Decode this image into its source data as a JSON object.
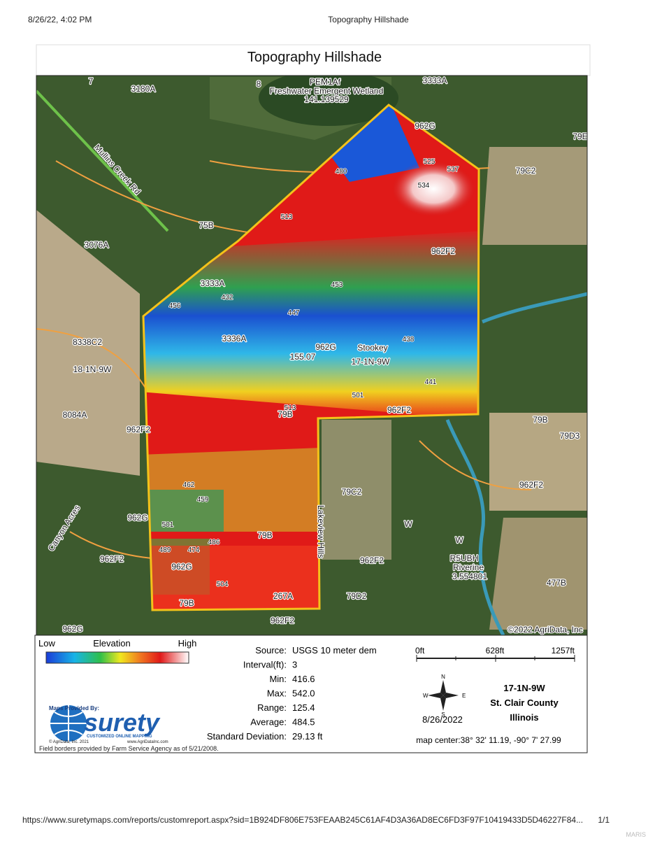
{
  "header": {
    "timestamp": "8/26/22, 4:02 PM",
    "page_title": "Topography Hillshade"
  },
  "report_title": "Topography Hillshade",
  "map_labels": [
    "7",
    "8",
    "3180A",
    "PEM1Af",
    "Freshwater Emergent Wetland",
    "141.139529",
    "3333A",
    "962G",
    "79E",
    "79C2",
    "Mullins Creek Rd",
    "75B",
    "3076A",
    "962F2",
    "3333A",
    "8338C2",
    "18-1N-9W",
    "3336A",
    "962G",
    "Stookey",
    "17-1N-9W",
    "155.07",
    "79B",
    "8084A",
    "962F2",
    "962F2",
    "79B",
    "79D3",
    "962F2",
    "79C2",
    "Lakeview Hills",
    "962G",
    "Canyon Acres",
    "962F2",
    "79B",
    "962F2",
    "R5UBH",
    "Riverine",
    "3.554801",
    "477B",
    "962G",
    "267A",
    "79D2",
    "79B",
    "962F2",
    "962G",
    "W",
    "W",
    "©2022 AgriData, Inc"
  ],
  "contour_labels": [
    "537",
    "534",
    "525",
    "513",
    "453",
    "438",
    "441",
    "501",
    "513",
    "504",
    "501",
    "489",
    "474",
    "486",
    "459",
    "462",
    "456",
    "480",
    "447",
    "432"
  ],
  "legend": {
    "low": "Low",
    "title": "Elevation",
    "high": "High"
  },
  "stats": [
    {
      "label": "Source:",
      "value": "USGS 10 meter dem"
    },
    {
      "label": "Interval(ft):",
      "value": "3"
    },
    {
      "label": "Min:",
      "value": "416.6"
    },
    {
      "label": "Max:",
      "value": "542.0"
    },
    {
      "label": "Range:",
      "value": "125.4"
    },
    {
      "label": "Average:",
      "value": "484.5"
    },
    {
      "label": "Standard Deviation:",
      "value": "29.13 ft"
    }
  ],
  "scale": [
    "0ft",
    "628ft",
    "1257ft"
  ],
  "compass": {
    "n": "N",
    "s": "S",
    "e": "E",
    "w": "W"
  },
  "date": "8/26/2022",
  "location": [
    "17-1N-9W",
    "St. Clair County",
    "Illinois"
  ],
  "map_center": "map center:38° 32' 11.19, -90° 7' 27.99",
  "logo": {
    "provided_by": "Maps Provided By:",
    "brand": "surety",
    "tagline": "CUSTOMIZED ONLINE MAPPING",
    "copyright": "© AgriData, Inc. 2021",
    "website": "www.AgriDataInc.com"
  },
  "field_note": "Field borders provided by Farm Service Agency as of 5/21/2008.",
  "footer": {
    "url": "https://www.suretymaps.com/reports/customreport.aspx?sid=1B924DF806E753FEAAB245C61AF4D3A36AD8EC6FD3F97F10419433D5D46227F84...",
    "page": "1/1",
    "watermark": "MARIS"
  }
}
